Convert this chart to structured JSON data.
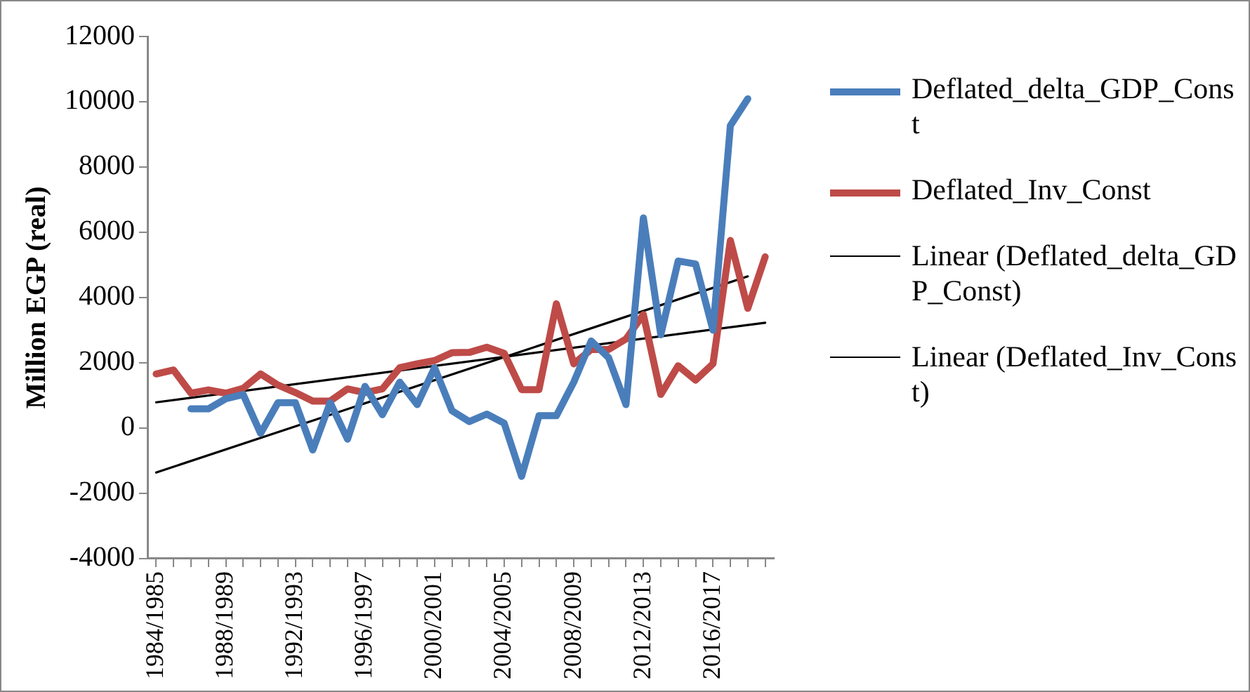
{
  "chart_data": {
    "type": "line",
    "ylabel": "Million EGP (real)",
    "categories": [
      "1984/1985",
      null,
      null,
      null,
      "1988/1989",
      null,
      null,
      null,
      "1992/1993",
      null,
      null,
      null,
      "1996/1997",
      null,
      null,
      null,
      "2000/2001",
      null,
      null,
      null,
      "2004/2005",
      null,
      null,
      null,
      "2008/2009",
      null,
      null,
      null,
      "2012/2013",
      null,
      null,
      null,
      "2016/2017",
      null,
      null,
      null
    ],
    "series": [
      {
        "name": "Deflated_delta_GDP_Const",
        "color": "#4a7ebb",
        "values": [
          null,
          null,
          590,
          590,
          900,
          1030,
          -160,
          780,
          780,
          -670,
          780,
          -340,
          1280,
          410,
          1410,
          720,
          1850,
          530,
          200,
          430,
          150,
          -1480,
          380,
          380,
          1410,
          2670,
          2160,
          720,
          6440,
          2860,
          5120,
          5030,
          3000,
          9270,
          10090,
          null
        ]
      },
      {
        "name": "Deflated_Inv_Const",
        "color": "#be4b48",
        "values": [
          1660,
          1780,
          1070,
          1170,
          1070,
          1220,
          1660,
          1320,
          1090,
          830,
          830,
          1200,
          1090,
          1200,
          1850,
          1970,
          2070,
          2310,
          2320,
          2480,
          2290,
          1180,
          1180,
          3810,
          1970,
          2410,
          2410,
          2730,
          3480,
          1030,
          1910,
          1470,
          1970,
          5750,
          3670,
          5250
        ]
      },
      {
        "name": "Linear (Deflated_delta_GDP_Const)",
        "color": "#000000",
        "values": [
          -1360,
          null,
          null,
          null,
          null,
          null,
          null,
          null,
          null,
          null,
          null,
          null,
          null,
          null,
          null,
          null,
          null,
          null,
          null,
          null,
          null,
          null,
          null,
          null,
          null,
          null,
          null,
          null,
          null,
          null,
          null,
          null,
          null,
          null,
          4650,
          null
        ]
      },
      {
        "name": "Linear (Deflated_Inv_Const)",
        "color": "#000000",
        "values": [
          790,
          null,
          null,
          null,
          null,
          null,
          null,
          null,
          null,
          null,
          null,
          null,
          null,
          null,
          null,
          null,
          null,
          null,
          null,
          null,
          null,
          null,
          null,
          null,
          null,
          null,
          null,
          null,
          null,
          null,
          null,
          null,
          null,
          null,
          null,
          3230
        ]
      }
    ],
    "ylim": [
      -4000,
      12000
    ],
    "yticks": [
      -4000,
      -2000,
      0,
      2000,
      4000,
      6000,
      8000,
      10000,
      12000
    ],
    "grid": false,
    "legend": "right",
    "marker": "none",
    "line_style": "solid"
  }
}
